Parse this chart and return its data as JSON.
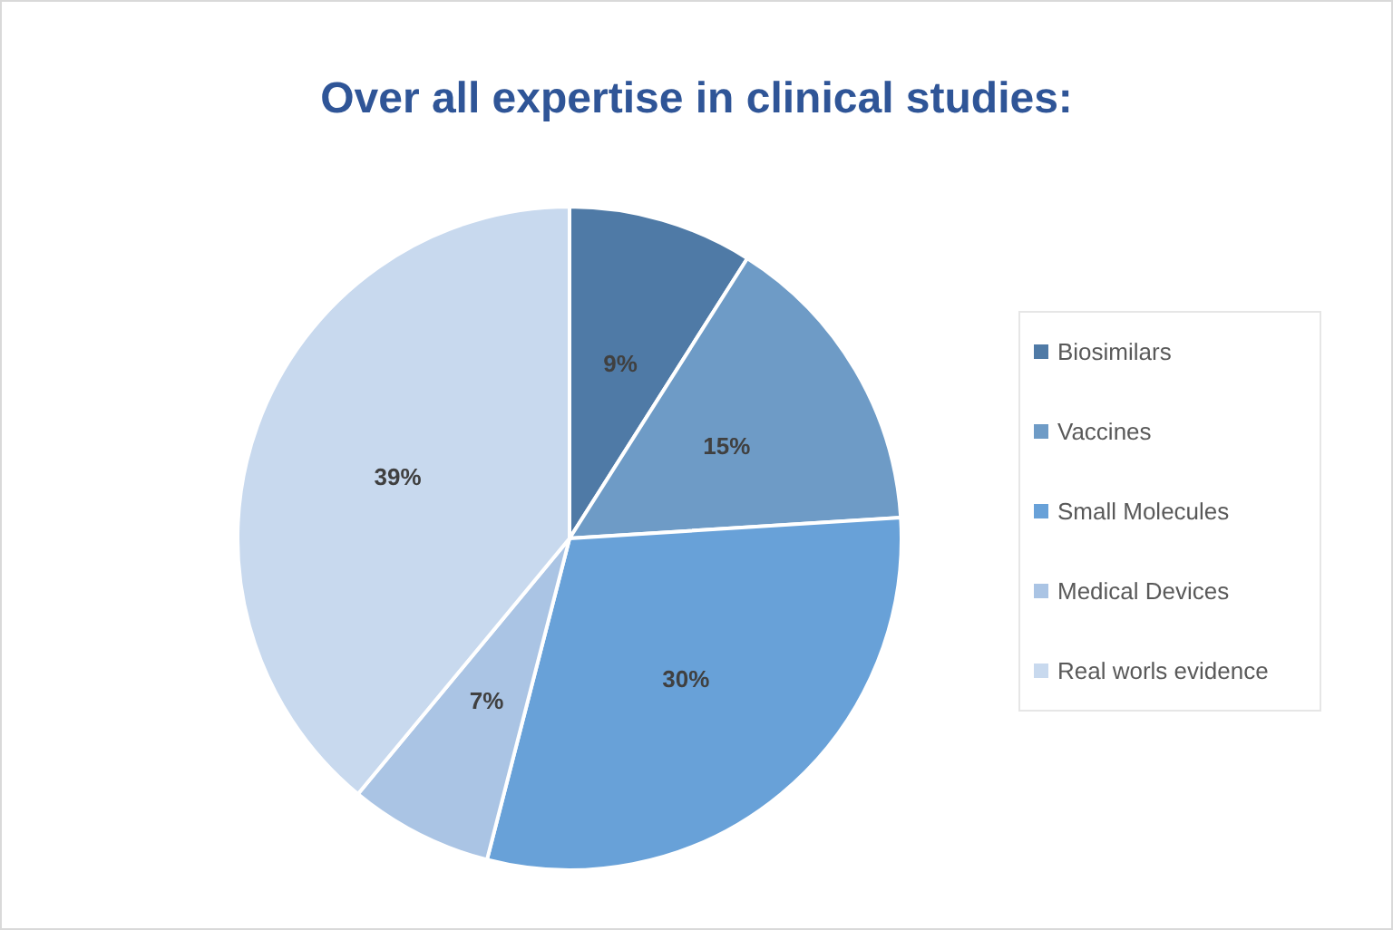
{
  "chart_data": {
    "type": "pie",
    "title": "Over all expertise in clinical studies:",
    "categories": [
      "Biosimilars",
      "Vaccines",
      "Small Molecules",
      "Medical Devices",
      "Real worls evidence"
    ],
    "values": [
      9,
      15,
      30,
      7,
      39
    ],
    "colors": [
      "#4f7aa6",
      "#6e9bc6",
      "#68a1d8",
      "#aac4e4",
      "#c8d9ee"
    ],
    "value_labels": [
      "9%",
      "15%",
      "30%",
      "7%",
      "39%"
    ],
    "legend": "right"
  }
}
